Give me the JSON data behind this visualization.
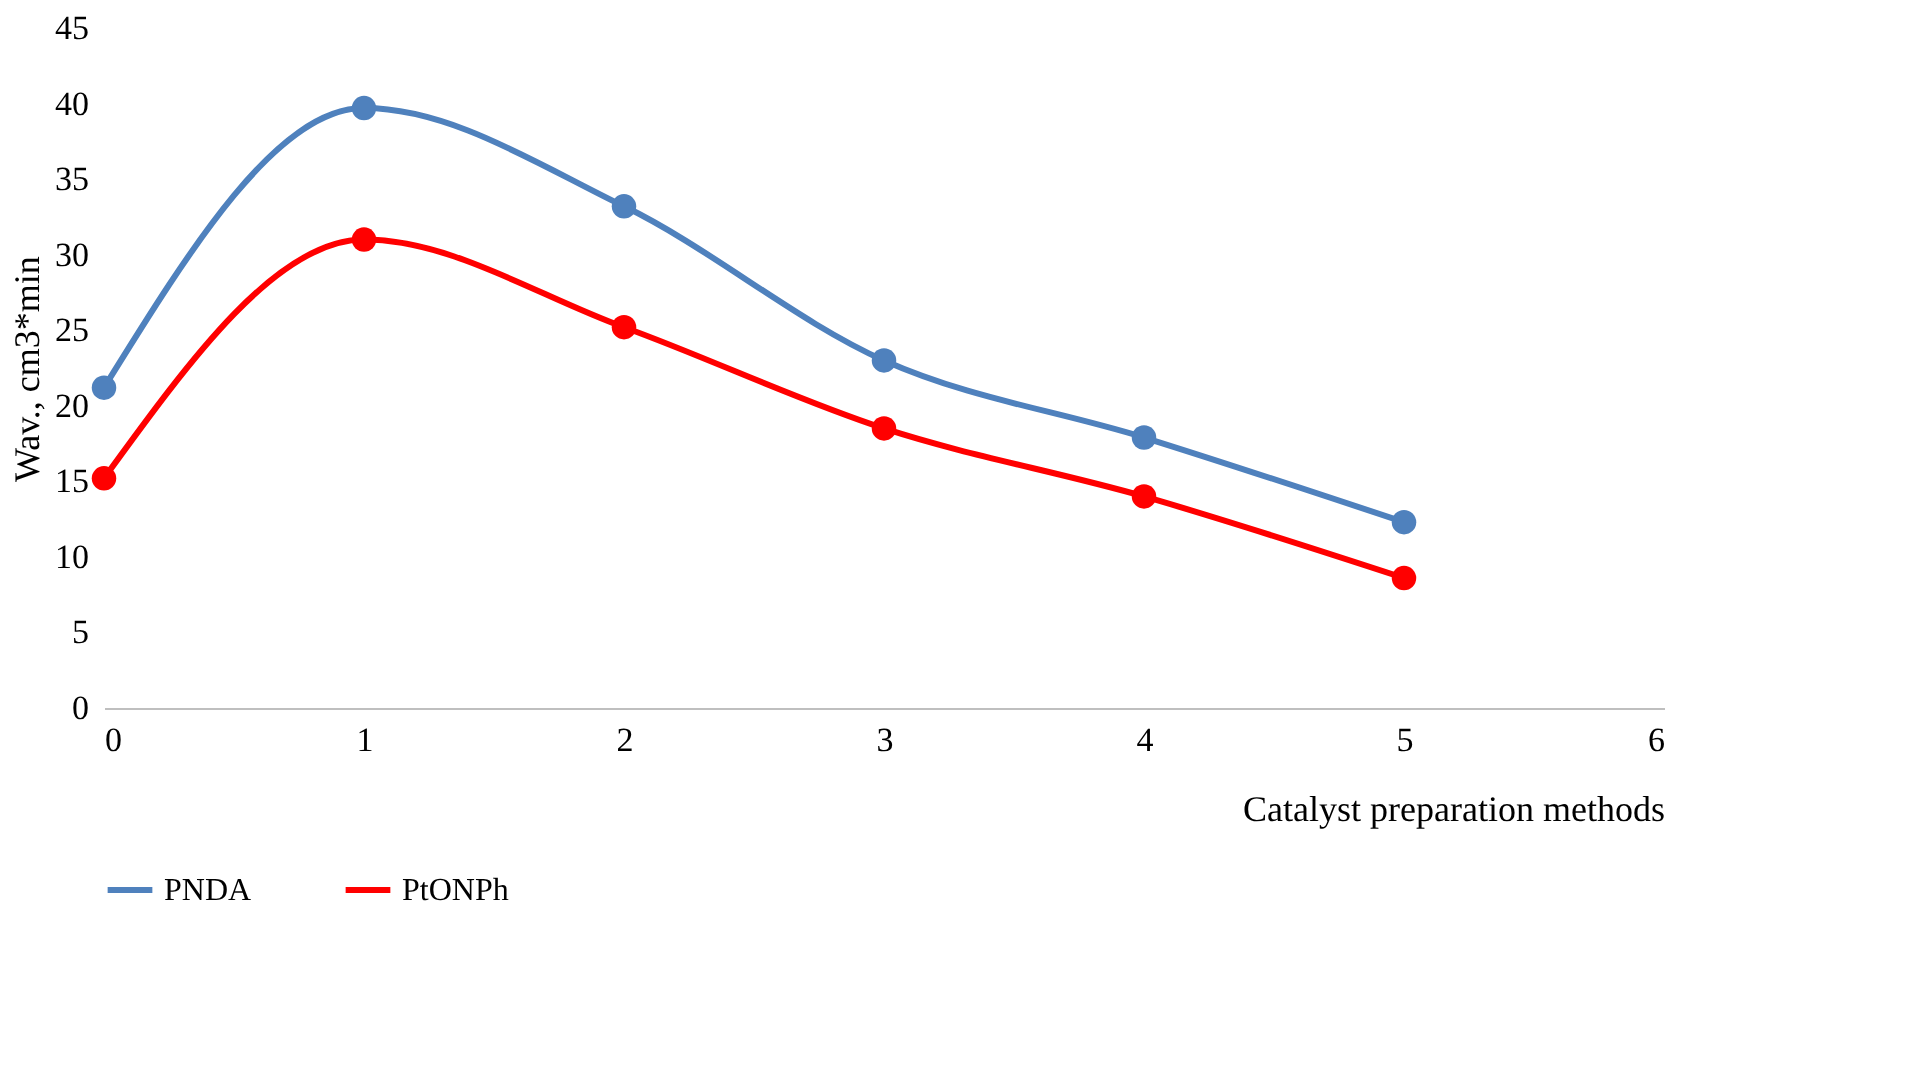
{
  "chart_data": {
    "type": "line",
    "xlabel": "Catalyst preparation methods",
    "ylabel": "Wav., cm3*min",
    "x": [
      0,
      1,
      2,
      3,
      4,
      5
    ],
    "series": [
      {
        "name": "PNDA",
        "color": "#4f81bd",
        "values": [
          21.2,
          39.7,
          33.2,
          23.0,
          17.9,
          12.3
        ]
      },
      {
        "name": "PtONPh",
        "color": "#ff0000",
        "values": [
          15.2,
          31.0,
          25.2,
          18.5,
          14.0,
          8.6
        ]
      }
    ],
    "xlim": [
      0,
      6
    ],
    "xticks": [
      0,
      1,
      2,
      3,
      4,
      5,
      6
    ],
    "ylim": [
      0,
      45
    ],
    "yticks": [
      0,
      5,
      10,
      15,
      20,
      25,
      30,
      35,
      40,
      45
    ],
    "grid": false,
    "legend": "bottom",
    "marker": "circle",
    "line_style": "solid"
  }
}
